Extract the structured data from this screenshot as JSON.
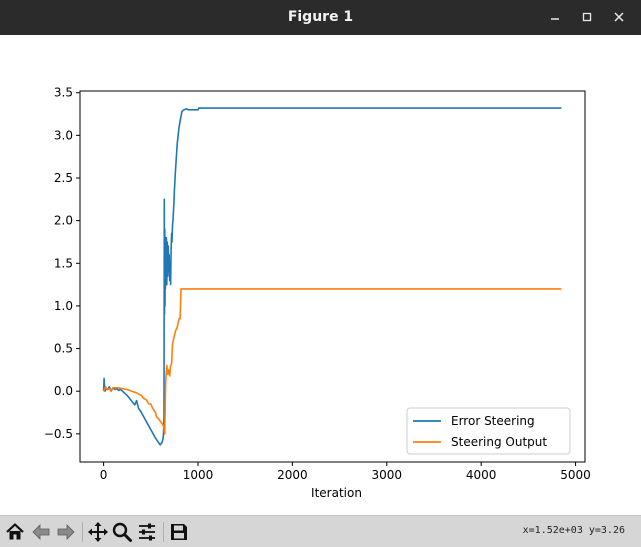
{
  "window": {
    "title": "Figure 1",
    "controls": [
      "minimize",
      "maximize",
      "close"
    ]
  },
  "toolbar": {
    "buttons": [
      {
        "name": "home-icon",
        "label": "Home"
      },
      {
        "name": "back-icon",
        "label": "Back"
      },
      {
        "name": "forward-icon",
        "label": "Forward"
      },
      {
        "name": "pan-icon",
        "label": "Pan"
      },
      {
        "name": "zoom-icon",
        "label": "Zoom"
      },
      {
        "name": "subplots-icon",
        "label": "Configure subplots"
      },
      {
        "name": "save-icon",
        "label": "Save"
      }
    ],
    "coords": "x=1.52e+03 y=3.26"
  },
  "chart_data": {
    "type": "line",
    "title": "",
    "xlabel": "Iteration",
    "ylabel": "",
    "xlim": [
      -250,
      5100
    ],
    "ylim": [
      -0.83,
      3.52
    ],
    "xticks": [
      0,
      1000,
      2000,
      3000,
      4000,
      5000
    ],
    "xtick_labels": [
      "0",
      "1000",
      "2000",
      "3000",
      "4000",
      "5000"
    ],
    "yticks": [
      -0.5,
      0.0,
      0.5,
      1.0,
      1.5,
      2.0,
      2.5,
      3.0,
      3.5
    ],
    "ytick_labels": [
      "−0.5",
      "0.0",
      "0.5",
      "1.0",
      "1.5",
      "2.0",
      "2.5",
      "3.0",
      "3.5"
    ],
    "grid": false,
    "legend": "lower right",
    "series": [
      {
        "name": "Error Steering",
        "color": "#1f77b4",
        "x": [
          0,
          5,
          10,
          15,
          25,
          40,
          60,
          80,
          100,
          120,
          140,
          160,
          180,
          200,
          250,
          300,
          330,
          350,
          370,
          400,
          450,
          500,
          550,
          600,
          620,
          630,
          635,
          640,
          643,
          645,
          648,
          650,
          653,
          655,
          658,
          660,
          665,
          670,
          675,
          680,
          685,
          690,
          695,
          700,
          705,
          710,
          715,
          720,
          725,
          730,
          735,
          740,
          745,
          750,
          760,
          780,
          800,
          830,
          850,
          880,
          900,
          950,
          1000,
          1010,
          1020,
          4850
        ],
        "y": [
          0.0,
          0.15,
          0.05,
          0.0,
          0.03,
          0.02,
          0.05,
          0.0,
          0.04,
          0.02,
          0.03,
          0.01,
          0.02,
          0.0,
          -0.05,
          -0.12,
          -0.16,
          -0.11,
          -0.2,
          -0.25,
          -0.35,
          -0.45,
          -0.55,
          -0.63,
          -0.6,
          -0.55,
          -0.5,
          -0.3,
          2.25,
          0.9,
          1.9,
          1.0,
          1.8,
          1.2,
          1.7,
          1.3,
          1.8,
          1.25,
          1.75,
          1.35,
          1.7,
          1.4,
          1.6,
          1.3,
          1.5,
          1.25,
          1.65,
          1.85,
          1.75,
          1.95,
          2.0,
          2.1,
          2.2,
          2.35,
          2.55,
          2.9,
          3.1,
          3.28,
          3.3,
          3.31,
          3.3,
          3.3,
          3.3,
          3.32,
          3.32,
          3.32
        ]
      },
      {
        "name": "Steering Output",
        "color": "#ff7f0e",
        "x": [
          0,
          20,
          40,
          60,
          80,
          100,
          150,
          200,
          250,
          300,
          350,
          400,
          420,
          450,
          480,
          500,
          520,
          550,
          560,
          580,
          600,
          620,
          640,
          648,
          655,
          660,
          670,
          680,
          690,
          700,
          710,
          720,
          730,
          740,
          750,
          760,
          780,
          800,
          810,
          820,
          4850
        ],
        "y": [
          0.0,
          0.05,
          0.02,
          0.03,
          0.0,
          0.04,
          0.04,
          0.03,
          0.02,
          0.0,
          -0.02,
          -0.05,
          -0.08,
          -0.1,
          -0.15,
          -0.15,
          -0.2,
          -0.25,
          -0.3,
          -0.32,
          -0.35,
          -0.38,
          -0.42,
          -0.5,
          0.0,
          0.15,
          0.3,
          0.2,
          0.25,
          0.18,
          0.3,
          0.32,
          0.55,
          0.6,
          0.65,
          0.7,
          0.75,
          0.85,
          0.85,
          1.2,
          1.2
        ]
      }
    ]
  }
}
